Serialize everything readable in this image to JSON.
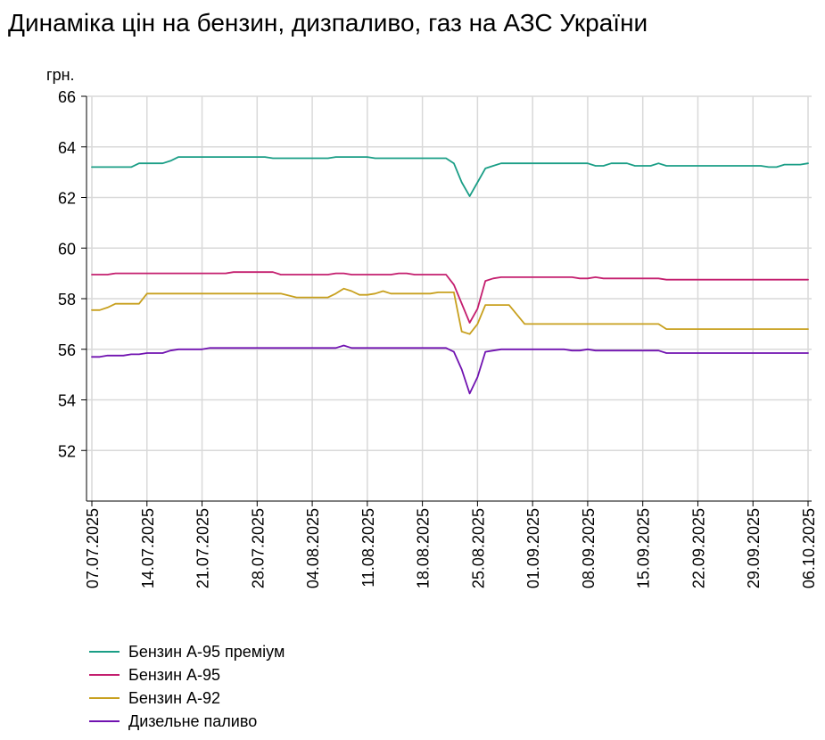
{
  "title": "Динаміка цін на бензин, дизпаливо, газ на АЗС України",
  "chart_data": {
    "type": "line",
    "title": "Динаміка цін на бензин, дизпаливо, газ на АЗС України",
    "ylabel": "грн.",
    "xlabel": "",
    "ylim": [
      50,
      66
    ],
    "y_ticks": [
      52,
      54,
      56,
      58,
      60,
      62,
      64,
      66
    ],
    "x_range": [
      "07.07.2025",
      "06.10.2025"
    ],
    "x_ticks": [
      "07.07.2025",
      "14.07.2025",
      "21.07.2025",
      "28.07.2025",
      "04.08.2025",
      "11.08.2025",
      "18.08.2025",
      "25.08.2025",
      "01.09.2025",
      "08.09.2025",
      "15.09.2025",
      "22.09.2025",
      "29.09.2025",
      "06.10.2025"
    ],
    "grid": true,
    "legend_position": "bottom-left",
    "series": [
      {
        "name": "Бензин А-95 преміум",
        "color": "#1a9e86",
        "points": [
          [
            "07.07.2025",
            63.2
          ],
          [
            "12.07.2025",
            63.2
          ],
          [
            "13.07.2025",
            63.35
          ],
          [
            "16.07.2025",
            63.35
          ],
          [
            "17.07.2025",
            63.45
          ],
          [
            "18.07.2025",
            63.6
          ],
          [
            "29.07.2025",
            63.6
          ],
          [
            "30.07.2025",
            63.55
          ],
          [
            "06.08.2025",
            63.55
          ],
          [
            "07.08.2025",
            63.6
          ],
          [
            "11.08.2025",
            63.6
          ],
          [
            "12.08.2025",
            63.55
          ],
          [
            "21.08.2025",
            63.55
          ],
          [
            "22.08.2025",
            63.35
          ],
          [
            "23.08.2025",
            62.6
          ],
          [
            "24.08.2025",
            62.05
          ],
          [
            "25.08.2025",
            62.6
          ],
          [
            "26.08.2025",
            63.15
          ],
          [
            "27.08.2025",
            63.25
          ],
          [
            "28.08.2025",
            63.35
          ],
          [
            "08.09.2025",
            63.35
          ],
          [
            "09.09.2025",
            63.25
          ],
          [
            "10.09.2025",
            63.25
          ],
          [
            "11.09.2025",
            63.35
          ],
          [
            "13.09.2025",
            63.35
          ],
          [
            "14.09.2025",
            63.25
          ],
          [
            "16.09.2025",
            63.25
          ],
          [
            "17.09.2025",
            63.35
          ],
          [
            "18.09.2025",
            63.25
          ],
          [
            "30.09.2025",
            63.25
          ],
          [
            "01.10.2025",
            63.2
          ],
          [
            "02.10.2025",
            63.2
          ],
          [
            "03.10.2025",
            63.3
          ],
          [
            "05.10.2025",
            63.3
          ],
          [
            "06.10.2025",
            63.35
          ]
        ]
      },
      {
        "name": "Бензин А-95",
        "color": "#c41e6e",
        "points": [
          [
            "07.07.2025",
            58.95
          ],
          [
            "09.07.2025",
            58.95
          ],
          [
            "10.07.2025",
            59.0
          ],
          [
            "24.07.2025",
            59.0
          ],
          [
            "25.07.2025",
            59.05
          ],
          [
            "30.07.2025",
            59.05
          ],
          [
            "31.07.2025",
            58.95
          ],
          [
            "06.08.2025",
            58.95
          ],
          [
            "07.08.2025",
            59.0
          ],
          [
            "08.08.2025",
            59.0
          ],
          [
            "09.08.2025",
            58.95
          ],
          [
            "14.08.2025",
            58.95
          ],
          [
            "15.08.2025",
            59.0
          ],
          [
            "16.08.2025",
            59.0
          ],
          [
            "17.08.2025",
            58.95
          ],
          [
            "21.08.2025",
            58.95
          ],
          [
            "22.08.2025",
            58.55
          ],
          [
            "24.08.2025",
            57.05
          ],
          [
            "25.08.2025",
            57.6
          ],
          [
            "26.08.2025",
            58.7
          ],
          [
            "27.08.2025",
            58.8
          ],
          [
            "28.08.2025",
            58.85
          ],
          [
            "06.09.2025",
            58.85
          ],
          [
            "07.09.2025",
            58.8
          ],
          [
            "08.09.2025",
            58.8
          ],
          [
            "09.09.2025",
            58.85
          ],
          [
            "10.09.2025",
            58.8
          ],
          [
            "17.09.2025",
            58.8
          ],
          [
            "18.09.2025",
            58.75
          ],
          [
            "06.10.2025",
            58.75
          ]
        ]
      },
      {
        "name": "Бензин А-92",
        "color": "#c8a01e",
        "points": [
          [
            "07.07.2025",
            57.55
          ],
          [
            "08.07.2025",
            57.55
          ],
          [
            "09.07.2025",
            57.65
          ],
          [
            "10.07.2025",
            57.8
          ],
          [
            "13.07.2025",
            57.8
          ],
          [
            "14.07.2025",
            58.2
          ],
          [
            "31.07.2025",
            58.2
          ],
          [
            "02.08.2025",
            58.05
          ],
          [
            "06.08.2025",
            58.05
          ],
          [
            "07.08.2025",
            58.2
          ],
          [
            "08.08.2025",
            58.4
          ],
          [
            "09.08.2025",
            58.3
          ],
          [
            "10.08.2025",
            58.15
          ],
          [
            "11.08.2025",
            58.15
          ],
          [
            "12.08.2025",
            58.2
          ],
          [
            "13.08.2025",
            58.3
          ],
          [
            "14.08.2025",
            58.2
          ],
          [
            "19.08.2025",
            58.2
          ],
          [
            "20.08.2025",
            58.25
          ],
          [
            "22.08.2025",
            58.25
          ],
          [
            "23.08.2025",
            56.7
          ],
          [
            "24.08.2025",
            56.6
          ],
          [
            "25.08.2025",
            57.0
          ],
          [
            "26.08.2025",
            57.75
          ],
          [
            "29.08.2025",
            57.75
          ],
          [
            "31.08.2025",
            57.0
          ],
          [
            "17.09.2025",
            57.0
          ],
          [
            "18.09.2025",
            56.8
          ],
          [
            "06.10.2025",
            56.8
          ]
        ]
      },
      {
        "name": "Дизельне паливо",
        "color": "#7012b0",
        "points": [
          [
            "07.07.2025",
            55.7
          ],
          [
            "08.07.2025",
            55.7
          ],
          [
            "09.07.2025",
            55.75
          ],
          [
            "11.07.2025",
            55.75
          ],
          [
            "12.07.2025",
            55.8
          ],
          [
            "13.07.2025",
            55.8
          ],
          [
            "14.07.2025",
            55.85
          ],
          [
            "16.07.2025",
            55.85
          ],
          [
            "17.07.2025",
            55.95
          ],
          [
            "18.07.2025",
            56.0
          ],
          [
            "21.07.2025",
            56.0
          ],
          [
            "22.07.2025",
            56.05
          ],
          [
            "07.08.2025",
            56.05
          ],
          [
            "08.08.2025",
            56.15
          ],
          [
            "09.08.2025",
            56.05
          ],
          [
            "21.08.2025",
            56.05
          ],
          [
            "22.08.2025",
            55.9
          ],
          [
            "23.08.2025",
            55.2
          ],
          [
            "24.08.2025",
            54.25
          ],
          [
            "25.08.2025",
            54.9
          ],
          [
            "26.08.2025",
            55.9
          ],
          [
            "27.08.2025",
            55.95
          ],
          [
            "28.08.2025",
            56.0
          ],
          [
            "05.09.2025",
            56.0
          ],
          [
            "06.09.2025",
            55.95
          ],
          [
            "07.09.2025",
            55.95
          ],
          [
            "08.09.2025",
            56.0
          ],
          [
            "09.09.2025",
            55.95
          ],
          [
            "17.09.2025",
            55.95
          ],
          [
            "18.09.2025",
            55.85
          ],
          [
            "06.10.2025",
            55.85
          ]
        ]
      }
    ]
  }
}
